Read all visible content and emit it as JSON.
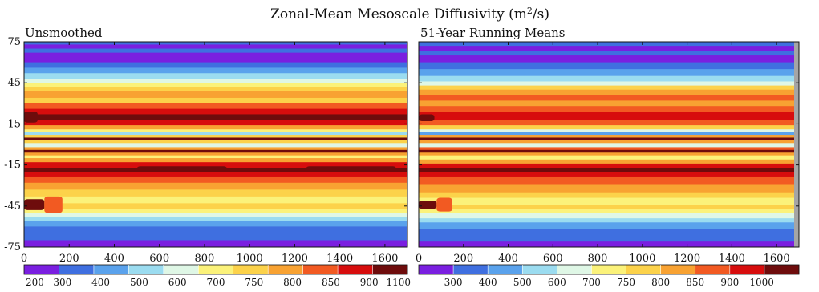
{
  "figure": {
    "title_main": "Zonal-Mean Mesoscale Diffusivity (m",
    "title_sup": "2",
    "title_tail": "/s)"
  },
  "colors": {
    "palette": [
      "#7a1fe0",
      "#3f6fe0",
      "#5aa2ec",
      "#9bdcf0",
      "#dff7e6",
      "#fbf27a",
      "#fcd24a",
      "#f8a232",
      "#f25a22",
      "#d70d0d",
      "#6e0c0c"
    ],
    "axis": "#111111",
    "edge_gray": "#a5a5a5"
  },
  "chart_data": [
    {
      "type": "heatmap",
      "panel_title": "Unsmoothed",
      "x": {
        "ticks": [
          0,
          200,
          400,
          600,
          800,
          1000,
          1200,
          1400,
          1600
        ],
        "range": [
          0,
          1700
        ]
      },
      "y": {
        "ticks": [
          75,
          45,
          15,
          -15,
          -45,
          -75
        ],
        "range": [
          -75,
          75
        ]
      },
      "colorbar": {
        "top_labels": [
          "0",
          "200",
          "400",
          "600",
          "800",
          "1000",
          "1200",
          "1400",
          "1600"
        ],
        "bottom_labels": [
          "200",
          "300",
          "400",
          "500",
          "600",
          "700",
          "750",
          "800",
          "850",
          "900",
          "1100"
        ]
      },
      "bands": [
        {
          "lat_from": 75,
          "lat_to": 73,
          "level": 1
        },
        {
          "lat_from": 73,
          "lat_to": 70,
          "level": 0
        },
        {
          "lat_from": 70,
          "lat_to": 67,
          "level": 1
        },
        {
          "lat_from": 67,
          "lat_to": 60,
          "level": 0
        },
        {
          "lat_from": 60,
          "lat_to": 56,
          "level": 1
        },
        {
          "lat_from": 56,
          "lat_to": 52,
          "level": 2
        },
        {
          "lat_from": 52,
          "lat_to": 48,
          "level": 3
        },
        {
          "lat_from": 48,
          "lat_to": 45,
          "level": 4
        },
        {
          "lat_from": 45,
          "lat_to": 42,
          "level": 5
        },
        {
          "lat_from": 42,
          "lat_to": 39,
          "level": 6
        },
        {
          "lat_from": 39,
          "lat_to": 34,
          "level": 7
        },
        {
          "lat_from": 34,
          "lat_to": 30,
          "level": 6
        },
        {
          "lat_from": 30,
          "lat_to": 26,
          "level": 8
        },
        {
          "lat_from": 26,
          "lat_to": 22,
          "level": 9
        },
        {
          "lat_from": 22,
          "lat_to": 18,
          "level": 10
        },
        {
          "lat_from": 18,
          "lat_to": 14,
          "level": 9
        },
        {
          "lat_from": 14,
          "lat_to": 11,
          "level": 7
        },
        {
          "lat_from": 11,
          "lat_to": 9,
          "level": 5
        },
        {
          "lat_from": 9,
          "lat_to": 7,
          "level": 3
        },
        {
          "lat_from": 7,
          "lat_to": 5,
          "level": 6
        },
        {
          "lat_from": 5,
          "lat_to": 3,
          "level": 10
        },
        {
          "lat_from": 3,
          "lat_to": 1,
          "level": 6
        },
        {
          "lat_from": 1,
          "lat_to": -2,
          "level": 4
        },
        {
          "lat_from": -2,
          "lat_to": -4,
          "level": 7
        },
        {
          "lat_from": -4,
          "lat_to": -6,
          "level": 10
        },
        {
          "lat_from": -6,
          "lat_to": -8,
          "level": 7
        },
        {
          "lat_from": -8,
          "lat_to": -10,
          "level": 5
        },
        {
          "lat_from": -10,
          "lat_to": -13,
          "level": 7
        },
        {
          "lat_from": -13,
          "lat_to": -17,
          "level": 9
        },
        {
          "lat_from": -17,
          "lat_to": -20,
          "level": 10
        },
        {
          "lat_from": -20,
          "lat_to": -24,
          "level": 9
        },
        {
          "lat_from": -24,
          "lat_to": -28,
          "level": 8
        },
        {
          "lat_from": -28,
          "lat_to": -33,
          "level": 7
        },
        {
          "lat_from": -33,
          "lat_to": -38,
          "level": 6
        },
        {
          "lat_from": -38,
          "lat_to": -43,
          "level": 5
        },
        {
          "lat_from": -43,
          "lat_to": -47,
          "level": 6
        },
        {
          "lat_from": -47,
          "lat_to": -50,
          "level": 5
        },
        {
          "lat_from": -50,
          "lat_to": -53,
          "level": 4
        },
        {
          "lat_from": -53,
          "lat_to": -56,
          "level": 3
        },
        {
          "lat_from": -56,
          "lat_to": -60,
          "level": 2
        },
        {
          "lat_from": -60,
          "lat_to": -70,
          "level": 1
        },
        {
          "lat_from": -70,
          "lat_to": -75,
          "level": 0
        }
      ],
      "patches": [
        {
          "lat_from": 24,
          "lat_to": 16,
          "x_from": 0,
          "x_to": 60,
          "level": 10
        },
        {
          "lat_from": -40,
          "lat_to": -48,
          "x_from": 0,
          "x_to": 90,
          "level": 10
        },
        {
          "lat_from": -38,
          "lat_to": -50,
          "x_from": 90,
          "x_to": 170,
          "level": 8
        },
        {
          "lat_from": -16,
          "lat_to": -20,
          "x_from": 500,
          "x_to": 900,
          "level": 10
        },
        {
          "lat_from": -16,
          "lat_to": -20,
          "x_from": 1250,
          "x_to": 1650,
          "level": 10
        }
      ]
    },
    {
      "type": "heatmap",
      "panel_title": "51-Year Running Means",
      "x": {
        "ticks": [
          0,
          200,
          400,
          600,
          800,
          1000,
          1200,
          1400,
          1600
        ],
        "range": [
          0,
          1700
        ]
      },
      "y": {
        "ticks": [
          75,
          45,
          15,
          -15,
          -45,
          -75
        ],
        "range": [
          -75,
          75
        ]
      },
      "colorbar": {
        "top_labels": [
          "0",
          "200",
          "400",
          "600",
          "800",
          "1000",
          "1200",
          "1400",
          "1600"
        ],
        "bottom_labels": [
          "300",
          "400",
          "500",
          "600",
          "700",
          "750",
          "800",
          "850",
          "900",
          "1000"
        ]
      },
      "bands": [
        {
          "lat_from": 75,
          "lat_to": 72,
          "level": 1
        },
        {
          "lat_from": 72,
          "lat_to": 68,
          "level": 0
        },
        {
          "lat_from": 68,
          "lat_to": 65,
          "level": 1
        },
        {
          "lat_from": 65,
          "lat_to": 60,
          "level": 0
        },
        {
          "lat_from": 60,
          "lat_to": 55,
          "level": 1
        },
        {
          "lat_from": 55,
          "lat_to": 50,
          "level": 2
        },
        {
          "lat_from": 50,
          "lat_to": 46,
          "level": 3
        },
        {
          "lat_from": 46,
          "lat_to": 43,
          "level": 4
        },
        {
          "lat_from": 43,
          "lat_to": 40,
          "level": 6
        },
        {
          "lat_from": 40,
          "lat_to": 36,
          "level": 7
        },
        {
          "lat_from": 36,
          "lat_to": 32,
          "level": 8
        },
        {
          "lat_from": 32,
          "lat_to": 28,
          "level": 7
        },
        {
          "lat_from": 28,
          "lat_to": 24,
          "level": 8
        },
        {
          "lat_from": 24,
          "lat_to": 18,
          "level": 9
        },
        {
          "lat_from": 18,
          "lat_to": 14,
          "level": 8
        },
        {
          "lat_from": 14,
          "lat_to": 11,
          "level": 6
        },
        {
          "lat_from": 11,
          "lat_to": 9,
          "level": 4
        },
        {
          "lat_from": 9,
          "lat_to": 7,
          "level": 2
        },
        {
          "lat_from": 7,
          "lat_to": 5,
          "level": 7
        },
        {
          "lat_from": 5,
          "lat_to": 3,
          "level": 10
        },
        {
          "lat_from": 3,
          "lat_to": 1,
          "level": 7
        },
        {
          "lat_from": 1,
          "lat_to": -2,
          "level": 4
        },
        {
          "lat_from": -2,
          "lat_to": -4,
          "level": 8
        },
        {
          "lat_from": -4,
          "lat_to": -6,
          "level": 10
        },
        {
          "lat_from": -6,
          "lat_to": -8,
          "level": 7
        },
        {
          "lat_from": -8,
          "lat_to": -11,
          "level": 5
        },
        {
          "lat_from": -11,
          "lat_to": -14,
          "level": 7
        },
        {
          "lat_from": -14,
          "lat_to": -17,
          "level": 9
        },
        {
          "lat_from": -17,
          "lat_to": -20,
          "level": 10
        },
        {
          "lat_from": -20,
          "lat_to": -24,
          "level": 9
        },
        {
          "lat_from": -24,
          "lat_to": -29,
          "level": 8
        },
        {
          "lat_from": -29,
          "lat_to": -35,
          "level": 7
        },
        {
          "lat_from": -35,
          "lat_to": -39,
          "level": 6
        },
        {
          "lat_from": -39,
          "lat_to": -44,
          "level": 5
        },
        {
          "lat_from": -44,
          "lat_to": -47,
          "level": 6
        },
        {
          "lat_from": -47,
          "lat_to": -50,
          "level": 5
        },
        {
          "lat_from": -50,
          "lat_to": -54,
          "level": 4
        },
        {
          "lat_from": -54,
          "lat_to": -57,
          "level": 3
        },
        {
          "lat_from": -57,
          "lat_to": -62,
          "level": 2
        },
        {
          "lat_from": -62,
          "lat_to": -71,
          "level": 1
        },
        {
          "lat_from": -71,
          "lat_to": -75,
          "level": 0
        }
      ],
      "patches": [
        {
          "lat_from": 22,
          "lat_to": 17,
          "x_from": 0,
          "x_to": 70,
          "level": 10
        },
        {
          "lat_from": -41,
          "lat_to": -47,
          "x_from": 0,
          "x_to": 80,
          "level": 10
        },
        {
          "lat_from": -39,
          "lat_to": -49,
          "x_from": 80,
          "x_to": 150,
          "level": 8
        },
        {
          "lat_from": -17,
          "lat_to": -20,
          "x_from": 450,
          "x_to": 1000,
          "level": 10
        },
        {
          "lat_from": -17,
          "lat_to": -20,
          "x_from": 1250,
          "x_to": 1650,
          "level": 10
        }
      ]
    }
  ]
}
